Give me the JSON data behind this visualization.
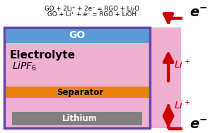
{
  "fig_width": 2.97,
  "fig_height": 1.89,
  "dpi": 100,
  "bg_color": "#ffffff",
  "equation1": "GO + 2Li⁺ + 2e⁻ = RGO + Li₂O",
  "equation2": "GO + Li⁺ + e⁻ = RGO + LiOH",
  "arrow_color": "#cc0000",
  "go_label": "GO",
  "electrolyte_label": "Electrolyte",
  "lipf6_label": "LiPF",
  "separator_label": "Separator",
  "lithium_label": "Lithium",
  "colors": {
    "go": "#5b9bd5",
    "electrolyte": "#f0b0d0",
    "separator": "#e8820c",
    "lithium": "#808080",
    "border": "#6644aa",
    "outer_bg": "#d0b0e8"
  }
}
